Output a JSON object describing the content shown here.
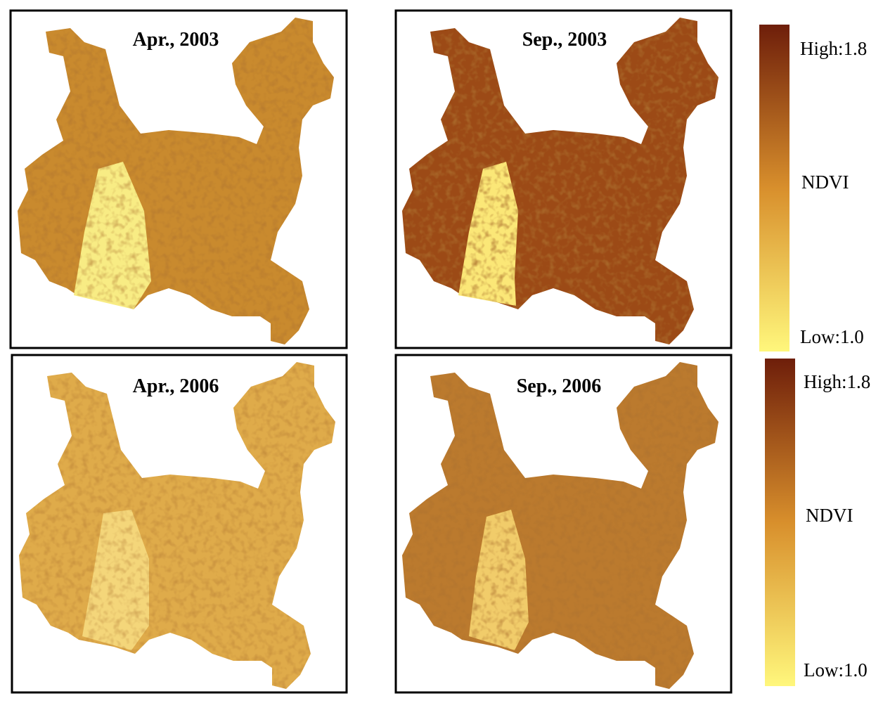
{
  "panels": [
    {
      "title": "Apr., 2003"
    },
    {
      "title": "Sep., 2003"
    },
    {
      "title": "Apr., 2006"
    },
    {
      "title": "Sep., 2006"
    }
  ],
  "legends": [
    {
      "high": "High:1.8",
      "title": "NDVI",
      "low": "Low:1.0"
    },
    {
      "high": "High:1.8",
      "title": "NDVI",
      "low": "Low:1.0"
    }
  ]
}
